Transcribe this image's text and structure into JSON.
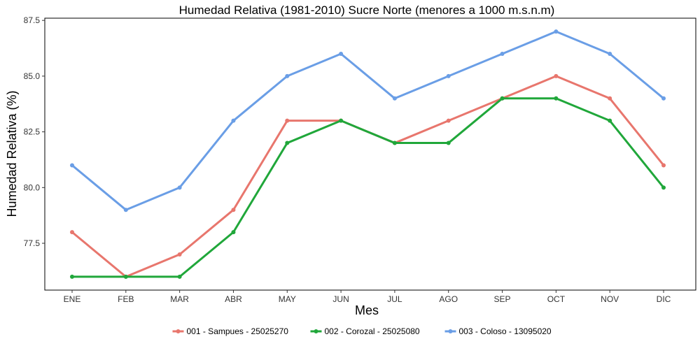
{
  "chart_data": {
    "type": "line",
    "title": "Humedad Relativa (1981-2010) Sucre Norte (menores a 1000 m.s.n.m)",
    "xlabel": "Mes",
    "ylabel": "Humedad Relativa (%)",
    "categories": [
      "ENE",
      "FEB",
      "MAR",
      "ABR",
      "MAY",
      "JUN",
      "JUL",
      "AGO",
      "SEP",
      "OCT",
      "NOV",
      "DIC"
    ],
    "yticks": [
      77.5,
      80.0,
      82.5,
      85.0,
      87.5
    ],
    "ytick_labels": [
      "77.5",
      "80.0",
      "82.5",
      "85.0",
      "87.5"
    ],
    "ylim": [
      75.4,
      87.6
    ],
    "grid": false,
    "legend_position": "bottom",
    "series": [
      {
        "name": "001 - Sampues - 25025270",
        "color": "#E8766D",
        "values": [
          78,
          76,
          77,
          79,
          83,
          83,
          82,
          83,
          84,
          85,
          84,
          81
        ]
      },
      {
        "name": "002 - Corozal - 25025080",
        "color": "#20A73A",
        "values": [
          76,
          76,
          76,
          78,
          82,
          83,
          82,
          82,
          84,
          84,
          83,
          80
        ]
      },
      {
        "name": "003 - Coloso - 13095020",
        "color": "#6A9EE6",
        "values": [
          81,
          79,
          80,
          83,
          85,
          86,
          84,
          85,
          86,
          87,
          86,
          84
        ]
      }
    ]
  }
}
